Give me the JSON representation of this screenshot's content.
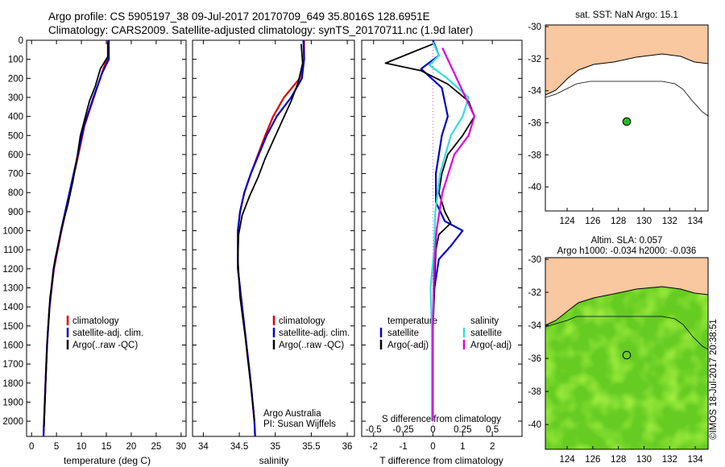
{
  "header": {
    "line1": "Argo profile: CS 5905197_38 09-Jul-2017 20170709_649 35.8016S 128.6951E",
    "line2": "Climatology: CARS2009. Satellite-adjusted climatology: synTS_20170711.nc (1.9d later)"
  },
  "credit": "©IMOS 18-Jul-2017 20:38:51",
  "colors": {
    "climatology": "#dd0000",
    "satellite": "#0000cc",
    "argo": "#000000",
    "sal_satellite": "#33dddd",
    "sal_argo": "#dd00dd",
    "land": "#f9c7a0",
    "argo_dot": "#22bb22"
  },
  "chart_data": [
    {
      "type": "line",
      "panel": "temperature",
      "xlabel": "temperature (deg C)",
      "ylabel": "",
      "xlim": [
        -1,
        31
      ],
      "ylim": [
        2080,
        0
      ],
      "xticks": [
        0,
        5,
        10,
        15,
        20,
        25,
        30
      ],
      "yticks": [
        0,
        100,
        200,
        300,
        400,
        500,
        600,
        700,
        800,
        900,
        1000,
        1100,
        1200,
        1300,
        1400,
        1500,
        1600,
        1700,
        1800,
        1900,
        2000
      ],
      "legend": [
        "climatology",
        "satellite-adj. clim.",
        "Argo(..raw -QC)"
      ],
      "series": [
        {
          "name": "climatology",
          "color_key": "climatology",
          "points": [
            [
              15.3,
              0
            ],
            [
              15.3,
              90
            ],
            [
              14.4,
              150
            ],
            [
              12.5,
              300
            ],
            [
              10.6,
              450
            ],
            [
              9.4,
              600
            ],
            [
              7.7,
              800
            ],
            [
              6.0,
              1000
            ],
            [
              4.5,
              1200
            ],
            [
              3.6,
              1400
            ],
            [
              3.1,
              1600
            ],
            [
              2.8,
              1800
            ],
            [
              2.5,
              2000
            ],
            [
              2.4,
              2080
            ]
          ]
        },
        {
          "name": "satellite-adj. clim.",
          "color_key": "satellite",
          "points": [
            [
              15.5,
              0
            ],
            [
              15.5,
              100
            ],
            [
              14.2,
              170
            ],
            [
              12.4,
              300
            ],
            [
              10.5,
              450
            ],
            [
              9.3,
              600
            ],
            [
              7.6,
              800
            ],
            [
              5.9,
              1000
            ],
            [
              4.4,
              1200
            ],
            [
              3.6,
              1400
            ],
            [
              3.1,
              1600
            ],
            [
              2.8,
              1800
            ],
            [
              2.5,
              2000
            ],
            [
              2.4,
              2080
            ]
          ]
        },
        {
          "name": "Argo(..raw -QC)",
          "color_key": "argo",
          "points": [
            [
              15.3,
              10
            ],
            [
              15.3,
              85
            ],
            [
              13.8,
              150
            ],
            [
              12.8,
              240
            ],
            [
              11.6,
              320
            ],
            [
              10.6,
              420
            ],
            [
              9.8,
              500
            ],
            [
              9.1,
              620
            ],
            [
              8.3,
              740
            ],
            [
              7.3,
              860
            ],
            [
              6.3,
              960
            ],
            [
              4.7,
              1150
            ],
            [
              3.7,
              1350
            ],
            [
              3.2,
              1550
            ],
            [
              2.9,
              1750
            ],
            [
              2.6,
              1950
            ],
            [
              2.5,
              2030
            ]
          ]
        }
      ]
    },
    {
      "type": "line",
      "panel": "salinity",
      "xlabel": "salinity",
      "ylabel": "",
      "xlim": [
        33.85,
        36.1
      ],
      "ylim": [
        2080,
        0
      ],
      "xticks": [
        34,
        34.5,
        35,
        35.5,
        36
      ],
      "legend": [
        "climatology",
        "satellite-adj. clim.",
        "Argo(..raw -QC)"
      ],
      "annotation": [
        "Argo Australia",
        "PI: Susan Wijffels"
      ],
      "series": [
        {
          "name": "climatology",
          "color_key": "climatology",
          "points": [
            [
              35.4,
              0
            ],
            [
              35.4,
              100
            ],
            [
              35.34,
              200
            ],
            [
              35.12,
              300
            ],
            [
              34.97,
              400
            ],
            [
              34.86,
              500
            ],
            [
              34.76,
              600
            ],
            [
              34.66,
              700
            ],
            [
              34.57,
              800
            ],
            [
              34.51,
              900
            ],
            [
              34.48,
              1000
            ],
            [
              34.48,
              1200
            ],
            [
              34.54,
              1400
            ],
            [
              34.6,
              1600
            ],
            [
              34.66,
              1800
            ],
            [
              34.71,
              2000
            ],
            [
              34.72,
              2080
            ]
          ]
        },
        {
          "name": "satellite-adj. clim.",
          "color_key": "satellite",
          "points": [
            [
              35.39,
              0
            ],
            [
              35.4,
              100
            ],
            [
              35.37,
              200
            ],
            [
              35.22,
              300
            ],
            [
              35.02,
              400
            ],
            [
              34.88,
              500
            ],
            [
              34.77,
              600
            ],
            [
              34.66,
              700
            ],
            [
              34.57,
              800
            ],
            [
              34.51,
              900
            ],
            [
              34.48,
              1000
            ],
            [
              34.48,
              1200
            ],
            [
              34.54,
              1400
            ],
            [
              34.6,
              1600
            ],
            [
              34.66,
              1800
            ],
            [
              34.71,
              2000
            ],
            [
              34.72,
              2080
            ]
          ]
        },
        {
          "name": "Argo(..raw -QC)",
          "color_key": "argo",
          "points": [
            [
              35.36,
              20
            ],
            [
              35.38,
              120
            ],
            [
              35.32,
              220
            ],
            [
              35.22,
              320
            ],
            [
              35.1,
              420
            ],
            [
              34.98,
              520
            ],
            [
              34.86,
              620
            ],
            [
              34.76,
              720
            ],
            [
              34.64,
              820
            ],
            [
              34.54,
              920
            ],
            [
              34.49,
              1020
            ],
            [
              34.48,
              1150
            ],
            [
              34.51,
              1350
            ],
            [
              34.58,
              1550
            ],
            [
              34.64,
              1750
            ],
            [
              34.7,
              1950
            ],
            [
              34.71,
              2000
            ]
          ]
        }
      ]
    },
    {
      "type": "line",
      "panel": "difference",
      "xlabel": "T difference from climatology",
      "x2label": "S difference from climatology",
      "xlim": [
        -2.4,
        3.0
      ],
      "ylim": [
        2080,
        0
      ],
      "xticks": [
        -2,
        -1,
        0,
        1,
        2
      ],
      "x2ticks": [
        -0.5,
        -0.25,
        0,
        0.25,
        0.5
      ],
      "legend_temperature": [
        "temperature",
        "satellite",
        "Argo(-adj)"
      ],
      "legend_salinity": [
        "salinity",
        "satellite",
        "Argo(-adj)"
      ],
      "series": [
        {
          "name": "satellite",
          "group": "temperature",
          "color_key": "satellite",
          "points": [
            [
              0,
              0
            ],
            [
              0.2,
              80
            ],
            [
              -0.4,
              150
            ],
            [
              0.3,
              250
            ],
            [
              0.5,
              400
            ],
            [
              0.3,
              500
            ],
            [
              0.1,
              700
            ],
            [
              0.1,
              850
            ],
            [
              0.4,
              950
            ],
            [
              1.0,
              1000
            ],
            [
              0.6,
              1080
            ],
            [
              0.2,
              1150
            ],
            [
              0.05,
              1300
            ],
            [
              0,
              1500
            ],
            [
              0,
              2000
            ]
          ]
        },
        {
          "name": "Argo(-adj)",
          "group": "temperature",
          "color_key": "argo",
          "points": [
            [
              0,
              20
            ],
            [
              -1.6,
              120
            ],
            [
              -0.4,
              160
            ],
            [
              0.5,
              230
            ],
            [
              1.2,
              320
            ],
            [
              1.4,
              400
            ],
            [
              1.0,
              500
            ],
            [
              0.5,
              600
            ],
            [
              0.3,
              700
            ],
            [
              0.2,
              800
            ],
            [
              0.4,
              900
            ],
            [
              0.6,
              960
            ],
            [
              0.2,
              1020
            ],
            [
              0.1,
              1100
            ],
            [
              0.05,
              1300
            ],
            [
              0,
              1500
            ],
            [
              0,
              2000
            ]
          ]
        },
        {
          "name": "satellite",
          "group": "salinity",
          "color_key": "sal_satellite",
          "points": [
            [
              0.0,
              10
            ],
            [
              0.05,
              80
            ],
            [
              -0.03,
              130
            ],
            [
              0.12,
              200
            ],
            [
              0.3,
              300
            ],
            [
              0.25,
              400
            ],
            [
              0.15,
              500
            ],
            [
              0.06,
              700
            ],
            [
              0.02,
              900
            ],
            [
              0.01,
              1100
            ],
            [
              -0.02,
              1300
            ],
            [
              -0.01,
              1500
            ],
            [
              -0.01,
              2000
            ]
          ]
        },
        {
          "name": "Argo(-adj)",
          "group": "salinity",
          "color_key": "sal_argo",
          "points": [
            [
              0.08,
              40
            ],
            [
              0.2,
              200
            ],
            [
              0.35,
              400
            ],
            [
              0.3,
              500
            ],
            [
              0.18,
              600
            ],
            [
              0.08,
              800
            ],
            [
              0.03,
              1000
            ],
            [
              0.01,
              1200
            ],
            [
              0.0,
              1500
            ],
            [
              0.0,
              2000
            ]
          ]
        }
      ]
    },
    {
      "type": "map",
      "panel": "sst_map",
      "title": "sat. SST: NaN Argo: 15.1",
      "xlim": [
        122.3,
        135.0
      ],
      "ylim": [
        -41.5,
        -29.9
      ],
      "xticks": [
        124,
        126,
        128,
        130,
        132,
        134
      ],
      "yticks": [
        -30,
        -32,
        -34,
        -36,
        -38,
        -40
      ],
      "argo_position": [
        128.7,
        -35.8
      ]
    },
    {
      "type": "map",
      "panel": "sla_map",
      "title": "Altim. SLA: 0.057",
      "subtitle": "Argo h1000: -0.034 h2000: -0.036",
      "xlim": [
        122.3,
        135.0
      ],
      "ylim": [
        -41.5,
        -29.9
      ],
      "xticks": [
        124,
        126,
        128,
        130,
        132,
        134
      ],
      "yticks": [
        -30,
        -32,
        -34,
        -36,
        -38,
        -40
      ],
      "argo_position": [
        128.7,
        -35.8
      ]
    }
  ]
}
